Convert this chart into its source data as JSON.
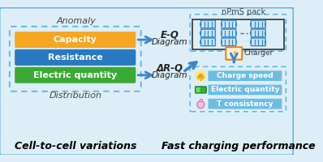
{
  "bg_color": "#ddeef8",
  "outer_border_color": "#5ab5e0",
  "left_panel": {
    "anomaly_label": "Anomaly",
    "distribution_label": "Distribution",
    "dashed_box_color": "#5ab5e0",
    "boxes": [
      {
        "label": "Capacity",
        "color": "#f5a623"
      },
      {
        "label": "Resistance",
        "color": "#2979c0"
      },
      {
        "label": "Electric quantity",
        "color": "#3aaa35"
      }
    ],
    "bottom_label": "Cell-to-cell variations"
  },
  "middle": {
    "eq_label": "E-Q",
    "eq_sub": "Diagram",
    "drq_label": "ΔR-Q",
    "drq_sub": "Diagram",
    "arrow_color": "#3a87c8"
  },
  "right_top": {
    "pack_label": "nPmS pack",
    "charger_label": "Charger",
    "battery_color": "#3a87c8",
    "battery_bg": "#c8e4f5",
    "charger_color": "#e8821a",
    "dashed_box_color": "#5ab5e0",
    "wire_color": "#444444"
  },
  "right_bottom": {
    "dashed_box_color": "#5ab5e0",
    "items": [
      {
        "label": "Charge speed"
      },
      {
        "label": "Electric quantity"
      },
      {
        "label": "T consistency"
      }
    ],
    "item_box_color": "#5ab5e0",
    "bottom_label": "Fast charging performance"
  }
}
